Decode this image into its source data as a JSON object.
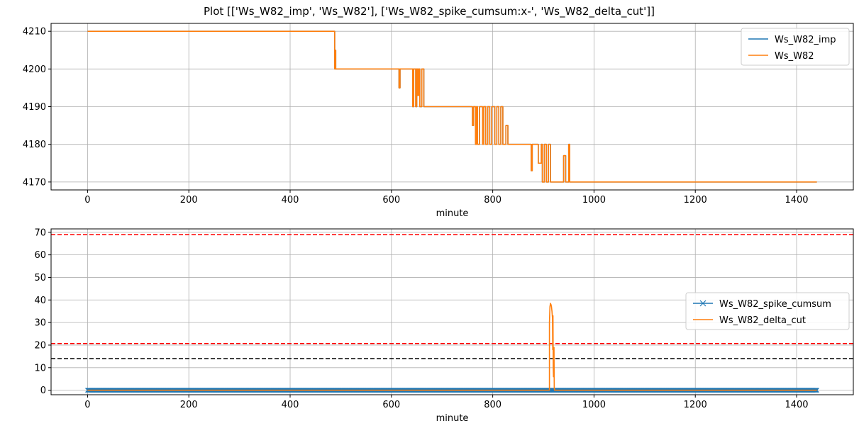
{
  "figure": {
    "title": "Plot [['Ws_W82_imp', 'Ws_W82'], ['Ws_W82_spike_cumsum:x-', 'Ws_W82_delta_cut']]"
  },
  "colors": {
    "blue": "#1f77b4",
    "orange": "#ff7f0e",
    "red": "#ff0000",
    "black": "#000000",
    "grid": "#b0b0b0"
  },
  "chart_data": [
    {
      "type": "line",
      "xlabel": "minute",
      "ylabel": "",
      "xlim": [
        -72,
        1512
      ],
      "ylim": [
        4167.9,
        4212.1
      ],
      "xticks": [
        0,
        200,
        400,
        600,
        800,
        1000,
        1200,
        1400
      ],
      "yticks": [
        4170,
        4180,
        4190,
        4200,
        4210
      ],
      "grid": true,
      "legend": "upper right",
      "series": [
        {
          "name": "Ws_W82_imp",
          "color": "#1f77b4",
          "x": [
            0,
            488,
            488,
            490,
            490,
            490,
            492,
            615,
            615,
            617,
            617,
            642,
            642,
            644,
            644,
            648,
            648,
            650,
            650,
            652,
            652,
            654,
            654,
            656,
            656,
            660,
            660,
            664,
            664,
            666,
            666,
            760,
            760,
            762,
            762,
            766,
            766,
            768,
            768,
            770,
            770,
            774,
            774,
            780,
            780,
            782,
            782,
            786,
            786,
            790,
            790,
            794,
            794,
            798,
            798,
            804,
            804,
            808,
            808,
            812,
            812,
            816,
            816,
            820,
            820,
            826,
            826,
            830,
            830,
            834,
            834,
            876,
            876,
            878,
            878,
            890,
            890,
            896,
            896,
            898,
            898,
            902,
            902,
            906,
            906,
            910,
            910,
            914,
            914,
            918,
            918,
            940,
            940,
            944,
            944,
            950,
            950,
            952,
            952,
            1440
          ],
          "y": [
            4210,
            4210,
            4200,
            4200,
            4205,
            4200,
            4200,
            4200,
            4195,
            4195,
            4200,
            4200,
            4190,
            4190,
            4200,
            4200,
            4190,
            4190,
            4200,
            4200,
            4193,
            4193,
            4200,
            4200,
            4190,
            4190,
            4200,
            4200,
            4190,
            4190,
            4190,
            4190,
            4185,
            4185,
            4190,
            4190,
            4180,
            4180,
            4190,
            4190,
            4180,
            4180,
            4190,
            4190,
            4180,
            4180,
            4190,
            4190,
            4180,
            4180,
            4190,
            4190,
            4180,
            4180,
            4190,
            4190,
            4180,
            4180,
            4190,
            4190,
            4180,
            4180,
            4190,
            4190,
            4180,
            4180,
            4185,
            4185,
            4180,
            4180,
            4180,
            4180,
            4173,
            4173,
            4180,
            4180,
            4175,
            4175,
            4180,
            4180,
            4170,
            4170,
            4180,
            4180,
            4170,
            4170,
            4180,
            4180,
            4170,
            4170,
            4170,
            4170,
            4177,
            4177,
            4170,
            4170,
            4180,
            4180,
            4170,
            4170
          ]
        },
        {
          "name": "Ws_W82",
          "color": "#ff7f0e",
          "x": [
            0,
            488,
            488,
            490,
            490,
            490,
            492,
            615,
            615,
            617,
            617,
            642,
            642,
            644,
            644,
            648,
            648,
            650,
            650,
            652,
            652,
            654,
            654,
            656,
            656,
            660,
            660,
            664,
            664,
            666,
            666,
            760,
            760,
            762,
            762,
            766,
            766,
            768,
            768,
            770,
            770,
            774,
            774,
            780,
            780,
            782,
            782,
            786,
            786,
            790,
            790,
            794,
            794,
            798,
            798,
            804,
            804,
            808,
            808,
            812,
            812,
            816,
            816,
            820,
            820,
            826,
            826,
            830,
            830,
            834,
            834,
            876,
            876,
            878,
            878,
            890,
            890,
            896,
            896,
            898,
            898,
            902,
            902,
            906,
            906,
            910,
            910,
            914,
            914,
            918,
            918,
            940,
            940,
            944,
            944,
            950,
            950,
            952,
            952,
            1440
          ],
          "y": [
            4210,
            4210,
            4200,
            4200,
            4205,
            4200,
            4200,
            4200,
            4195,
            4195,
            4200,
            4200,
            4190,
            4190,
            4200,
            4200,
            4190,
            4190,
            4200,
            4200,
            4193,
            4193,
            4200,
            4200,
            4190,
            4190,
            4200,
            4200,
            4190,
            4190,
            4190,
            4190,
            4185,
            4185,
            4190,
            4190,
            4180,
            4180,
            4190,
            4190,
            4180,
            4180,
            4190,
            4190,
            4180,
            4180,
            4190,
            4190,
            4180,
            4180,
            4190,
            4190,
            4180,
            4180,
            4190,
            4190,
            4180,
            4180,
            4190,
            4190,
            4180,
            4180,
            4190,
            4190,
            4180,
            4180,
            4185,
            4185,
            4180,
            4180,
            4180,
            4180,
            4173,
            4173,
            4180,
            4180,
            4175,
            4175,
            4180,
            4180,
            4170,
            4170,
            4180,
            4180,
            4170,
            4170,
            4180,
            4180,
            4170,
            4170,
            4170,
            4170,
            4177,
            4177,
            4170,
            4170,
            4180,
            4180,
            4170,
            4170
          ]
        }
      ]
    },
    {
      "type": "line",
      "xlabel": "minute",
      "ylabel": "",
      "xlim": [
        -72,
        1512
      ],
      "ylim": [
        -2,
        71.5
      ],
      "xticks": [
        0,
        200,
        400,
        600,
        800,
        1000,
        1200,
        1400
      ],
      "yticks": [
        0,
        10,
        20,
        30,
        40,
        50,
        60,
        70
      ],
      "grid": true,
      "legend": "center right",
      "hlines": [
        {
          "y": 69,
          "color": "#ff0000",
          "style": "dashed"
        },
        {
          "y": 20.7,
          "color": "#ff0000",
          "style": "dashed"
        },
        {
          "y": 14,
          "color": "#000000",
          "style": "dashed"
        }
      ],
      "series": [
        {
          "name": "Ws_W82_spike_cumsum",
          "color": "#1f77b4",
          "marker": "x",
          "x_start": 0,
          "x_end": 1440,
          "marker_step": 1,
          "value": 0
        },
        {
          "name": "Ws_W82_delta_cut",
          "color": "#ff7f0e",
          "x": [
            0,
            912,
            912,
            913,
            914,
            915,
            916,
            917,
            918,
            918.5,
            919,
            919.5,
            920,
            921,
            921.5,
            922,
            1440
          ],
          "y": [
            0,
            0,
            30,
            37,
            38.5,
            38,
            37,
            35,
            32,
            18,
            33,
            10,
            6,
            19,
            1,
            0,
            0
          ]
        }
      ]
    }
  ]
}
